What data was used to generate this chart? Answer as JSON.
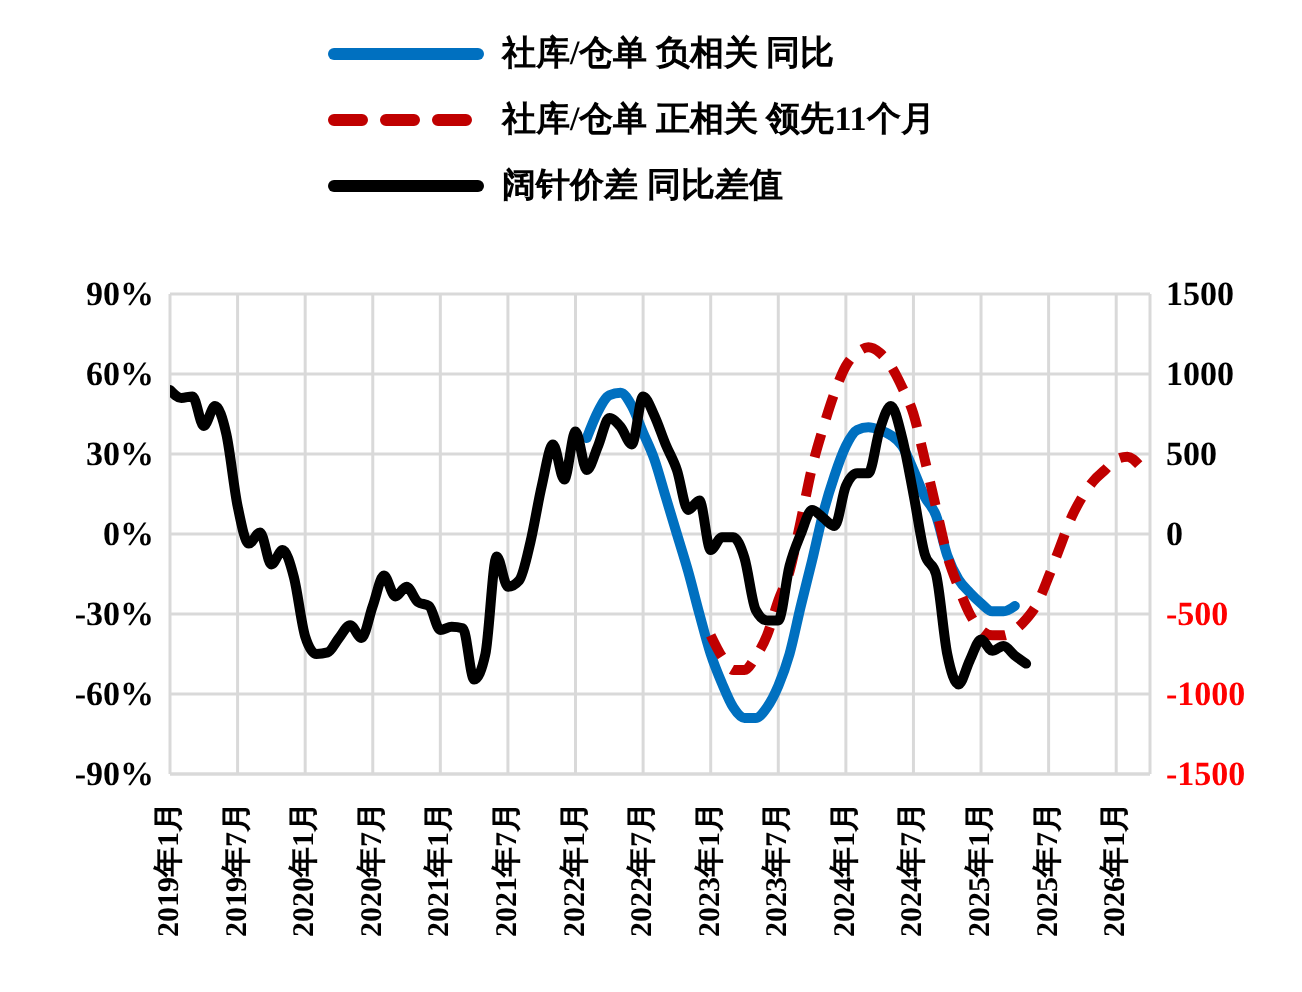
{
  "chart_data": {
    "type": "line",
    "series": [
      {
        "name": "社库/仓单 负相关 同比",
        "color": "#0070c0",
        "line_style": "solid",
        "axis": "y",
        "x": [
          "2022-02",
          "2022-03",
          "2022-04",
          "2022-05",
          "2022-06",
          "2022-07",
          "2022-08",
          "2022-09",
          "2022-10",
          "2022-11",
          "2022-12",
          "2023-01",
          "2023-02",
          "2023-03",
          "2023-04",
          "2023-05",
          "2023-06",
          "2023-07",
          "2023-08",
          "2023-09",
          "2023-10",
          "2023-11",
          "2023-12",
          "2024-01",
          "2024-02",
          "2024-03",
          "2024-04",
          "2024-05",
          "2024-06",
          "2024-07",
          "2024-08",
          "2024-09",
          "2024-10",
          "2024-11",
          "2024-12",
          "2025-01",
          "2025-02",
          "2025-03",
          "2025-04"
        ],
        "values": [
          36,
          46,
          52,
          53,
          48,
          38,
          28,
          14,
          0,
          -14,
          -30,
          -45,
          -56,
          -65,
          -69,
          -69,
          -65,
          -57,
          -45,
          -27,
          -10,
          8,
          22,
          33,
          39,
          40,
          39,
          37,
          33,
          24,
          14,
          7,
          -8,
          -17,
          -22,
          -26,
          -29,
          -29,
          -27
        ]
      },
      {
        "name": "社库/仓单 正相关 领先11个月",
        "color": "#c00000",
        "line_style": "dashed",
        "axis": "y",
        "x": [
          "2023-01",
          "2023-02",
          "2023-03",
          "2023-04",
          "2023-05",
          "2023-06",
          "2023-07",
          "2023-08",
          "2023-09",
          "2023-10",
          "2023-11",
          "2023-12",
          "2024-01",
          "2024-02",
          "2024-03",
          "2024-04",
          "2024-05",
          "2024-06",
          "2024-07",
          "2024-08",
          "2024-09",
          "2024-10",
          "2024-11",
          "2024-12",
          "2025-01",
          "2025-02",
          "2025-03",
          "2025-04",
          "2025-05",
          "2025-06",
          "2025-07",
          "2025-08",
          "2025-09",
          "2025-10",
          "2025-11",
          "2025-12",
          "2026-01",
          "2026-02",
          "2026-03"
        ],
        "values": [
          -38,
          -46,
          -51,
          -51,
          -46,
          -38,
          -25,
          -14,
          5,
          25,
          40,
          53,
          63,
          68,
          70,
          68,
          63,
          55,
          45,
          28,
          10,
          -8,
          -20,
          -30,
          -36,
          -38,
          -38,
          -36,
          -32,
          -26,
          -16,
          -5,
          6,
          14,
          20,
          24,
          28,
          29,
          26
        ]
      },
      {
        "name": "阔针价差 同比差值",
        "color": "#000000",
        "line_style": "solid",
        "axis": "y2",
        "x": [
          "2019-01",
          "2019-02",
          "2019-03",
          "2019-04",
          "2019-05",
          "2019-06",
          "2019-07",
          "2019-08",
          "2019-09",
          "2019-10",
          "2019-11",
          "2019-12",
          "2020-01",
          "2020-02",
          "2020-03",
          "2020-04",
          "2020-05",
          "2020-06",
          "2020-07",
          "2020-08",
          "2020-09",
          "2020-10",
          "2020-11",
          "2020-12",
          "2021-01",
          "2021-02",
          "2021-03",
          "2021-04",
          "2021-05",
          "2021-06",
          "2021-07",
          "2021-08",
          "2021-09",
          "2021-10",
          "2021-11",
          "2021-12",
          "2022-01",
          "2022-02",
          "2022-03",
          "2022-04",
          "2022-05",
          "2022-06",
          "2022-07",
          "2022-08",
          "2022-09",
          "2022-10",
          "2022-11",
          "2022-12",
          "2023-01",
          "2023-02",
          "2023-03",
          "2023-04",
          "2023-05",
          "2023-06",
          "2023-07",
          "2023-08",
          "2023-09",
          "2023-10",
          "2023-11",
          "2023-12",
          "2024-01",
          "2024-02",
          "2024-03",
          "2024-04",
          "2024-05",
          "2024-06",
          "2024-07",
          "2024-08",
          "2024-09",
          "2024-10",
          "2024-11",
          "2024-12",
          "2025-01",
          "2025-02",
          "2025-03",
          "2025-04",
          "2025-05"
        ],
        "values": [
          900,
          850,
          860,
          675,
          800,
          625,
          175,
          -60,
          10,
          -190,
          -100,
          -270,
          -640,
          -750,
          -740,
          -650,
          -570,
          -650,
          -450,
          -260,
          -390,
          -330,
          -425,
          -450,
          -600,
          -580,
          -590,
          -910,
          -750,
          -140,
          -330,
          -290,
          -50,
          300,
          560,
          340,
          640,
          400,
          550,
          725,
          670,
          560,
          860,
          740,
          560,
          400,
          150,
          210,
          -100,
          -20,
          -20,
          -150,
          -475,
          -540,
          -540,
          -200,
          0,
          150,
          100,
          50,
          300,
          380,
          380,
          650,
          800,
          600,
          250,
          -125,
          -250,
          -750,
          -940,
          -790,
          -660,
          -730,
          -700,
          -760,
          -810
        ]
      }
    ],
    "xlim": [
      "2019-01",
      "2026-04"
    ],
    "xticks": [
      {
        "value": "2019-01",
        "label": "2019年1月"
      },
      {
        "value": "2019-07",
        "label": "2019年7月"
      },
      {
        "value": "2020-01",
        "label": "2020年1月"
      },
      {
        "value": "2020-07",
        "label": "2020年7月"
      },
      {
        "value": "2021-01",
        "label": "2021年1月"
      },
      {
        "value": "2021-07",
        "label": "2021年7月"
      },
      {
        "value": "2022-01",
        "label": "2022年1月"
      },
      {
        "value": "2022-07",
        "label": "2022年7月"
      },
      {
        "value": "2023-01",
        "label": "2023年1月"
      },
      {
        "value": "2023-07",
        "label": "2023年7月"
      },
      {
        "value": "2024-01",
        "label": "2024年1月"
      },
      {
        "value": "2024-07",
        "label": "2024年7月"
      },
      {
        "value": "2025-01",
        "label": "2025年1月"
      },
      {
        "value": "2025-07",
        "label": "2025年7月"
      },
      {
        "value": "2026-01",
        "label": "2026年1月"
      }
    ],
    "ylim": [
      -90,
      90
    ],
    "yticks": [
      {
        "value": -90,
        "label": "-90%"
      },
      {
        "value": -60,
        "label": "-60%"
      },
      {
        "value": -30,
        "label": "-30%"
      },
      {
        "value": 0,
        "label": "0%"
      },
      {
        "value": 30,
        "label": "30%"
      },
      {
        "value": 60,
        "label": "60%"
      },
      {
        "value": 90,
        "label": "90%"
      }
    ],
    "y2lim": [
      -1500,
      1500
    ],
    "y2ticks": [
      -1500,
      -1000,
      -500,
      0,
      500,
      1000,
      1500
    ],
    "grid": true,
    "legend": "top",
    "marker": "none"
  }
}
